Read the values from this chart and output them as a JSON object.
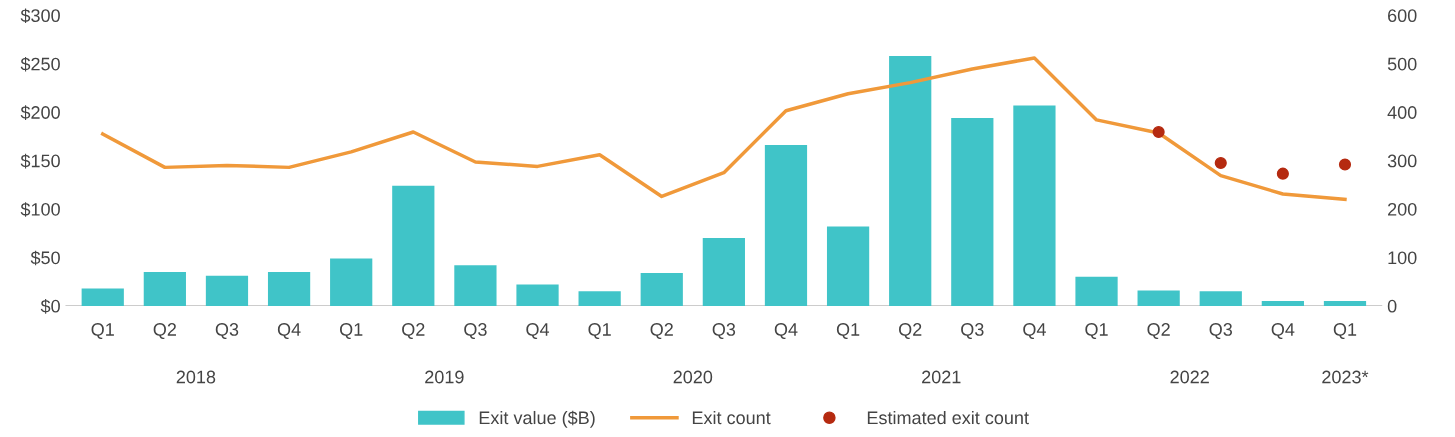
{
  "chart_data": {
    "type": "bar",
    "categories": [
      "Q1",
      "Q2",
      "Q3",
      "Q4",
      "Q1",
      "Q2",
      "Q3",
      "Q4",
      "Q1",
      "Q2",
      "Q3",
      "Q4",
      "Q1",
      "Q2",
      "Q3",
      "Q4",
      "Q1",
      "Q2",
      "Q3",
      "Q4",
      "Q1"
    ],
    "series": [
      {
        "name": "Exit value ($B)",
        "color": "#40c4c8",
        "values": [
          18,
          35,
          31,
          35,
          49,
          124,
          42,
          22,
          15,
          34,
          70,
          166,
          82,
          258,
          194,
          207,
          30,
          16,
          15,
          5,
          5
        ]
      },
      {
        "name": "Exit count",
        "type": "line",
        "axis": "y2",
        "color": "#f0993a",
        "values": [
          355,
          286,
          290,
          286,
          318,
          359,
          297,
          288,
          312,
          226,
          275,
          403,
          438,
          461,
          489,
          512,
          384,
          357,
          269,
          231,
          220
        ]
      },
      {
        "name": "Estimated exit count",
        "type": "scatter",
        "axis": "y2",
        "color": "#b52a10",
        "values": [
          null,
          null,
          null,
          null,
          null,
          null,
          null,
          null,
          null,
          null,
          null,
          null,
          null,
          null,
          null,
          null,
          null,
          359,
          295,
          273,
          292
        ]
      }
    ],
    "ylim": [
      0,
      300
    ],
    "yticks": [
      {
        "value": 0,
        "label": "$0"
      },
      {
        "value": 50,
        "label": "$50"
      },
      {
        "value": 100,
        "label": "$100"
      },
      {
        "value": 150,
        "label": "$150"
      },
      {
        "value": 200,
        "label": "$200"
      },
      {
        "value": 250,
        "label": "$250"
      },
      {
        "value": 300,
        "label": "$300"
      }
    ],
    "y2lim": [
      0,
      600
    ],
    "y2ticks": [
      0,
      100,
      200,
      300,
      400,
      500,
      600
    ],
    "annotations": [
      "2018",
      "2019",
      "2020",
      "2021",
      "2022",
      "2023*"
    ],
    "legend": "bottom",
    "grid": false
  }
}
